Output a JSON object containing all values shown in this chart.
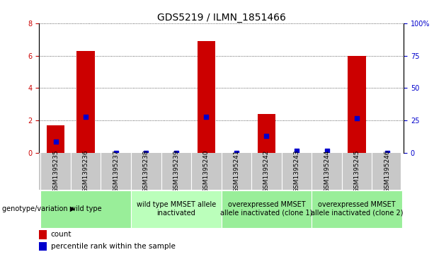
{
  "title": "GDS5219 / ILMN_1851466",
  "samples": [
    "GSM1395235",
    "GSM1395236",
    "GSM1395237",
    "GSM1395238",
    "GSM1395239",
    "GSM1395240",
    "GSM1395241",
    "GSM1395242",
    "GSM1395243",
    "GSM1395244",
    "GSM1395245",
    "GSM1395246"
  ],
  "counts": [
    1.7,
    6.3,
    0.0,
    0.0,
    0.0,
    6.9,
    0.0,
    2.4,
    0.0,
    0.0,
    6.0,
    0.0
  ],
  "percentiles": [
    9,
    28,
    0,
    0,
    0,
    28,
    0,
    13,
    2,
    2,
    27,
    0
  ],
  "ylim_left": [
    0,
    8
  ],
  "ylim_right": [
    0,
    100
  ],
  "yticks_left": [
    0,
    2,
    4,
    6,
    8
  ],
  "yticks_right": [
    0,
    25,
    50,
    75,
    100
  ],
  "yticklabels_right": [
    "0",
    "25",
    "50",
    "75",
    "100%"
  ],
  "bar_color": "#cc0000",
  "dot_color": "#0000cc",
  "left_tick_color": "#cc0000",
  "right_tick_color": "#0000cc",
  "grid_color": "#000000",
  "bg_color": "#ffffff",
  "sample_bg_color": "#c8c8c8",
  "group_defs": [
    {
      "cols": [
        0,
        1,
        2
      ],
      "label": "wild type",
      "color": "#99ee99"
    },
    {
      "cols": [
        3,
        4,
        5
      ],
      "label": "wild type MMSET allele\ninactivated",
      "color": "#bbffbb"
    },
    {
      "cols": [
        6,
        7,
        8
      ],
      "label": "overexpressed MMSET\nallele inactivated (clone 1)",
      "color": "#99ee99"
    },
    {
      "cols": [
        9,
        10,
        11
      ],
      "label": "overexpressed MMSET\nallele inactivated (clone 2)",
      "color": "#99ee99"
    }
  ],
  "group_header": "genotype/variation",
  "legend_count_label": "count",
  "legend_pct_label": "percentile rank within the sample",
  "title_fontsize": 10,
  "tick_fontsize": 7,
  "sample_fontsize": 6.5,
  "group_fontsize": 7,
  "legend_fontsize": 7.5
}
